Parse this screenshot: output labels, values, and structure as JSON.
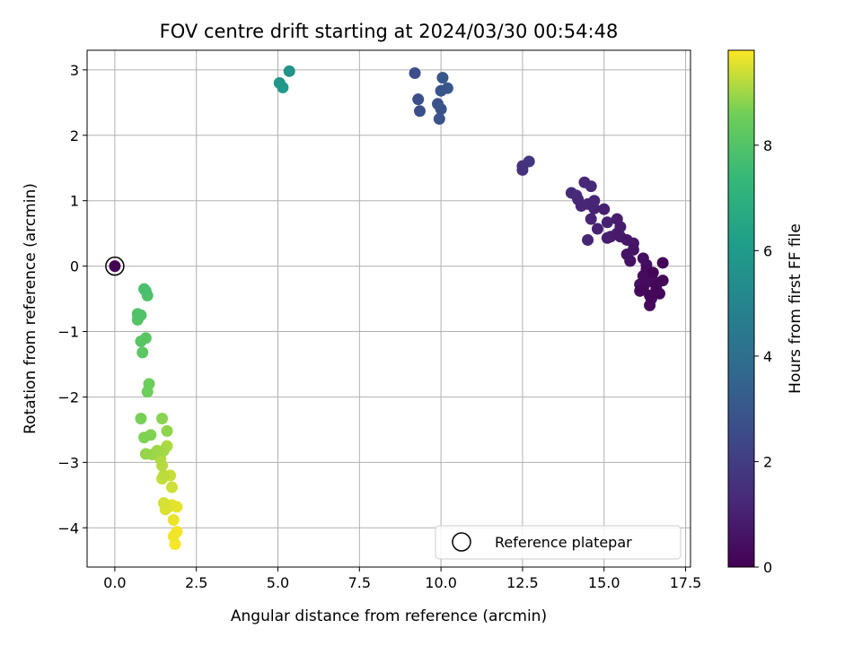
{
  "chart_data": {
    "type": "scatter",
    "title": "FOV centre drift starting at 2024/03/30 00:54:48",
    "xlabel": "Angular distance from reference (arcmin)",
    "ylabel": "Rotation from reference (arcmin)",
    "xlim": [
      -0.85,
      17.65
    ],
    "ylim": [
      -4.6,
      3.3
    ],
    "xticks": [
      0.0,
      2.5,
      5.0,
      7.5,
      10.0,
      12.5,
      15.0,
      17.5
    ],
    "xtick_labels": [
      "0.0",
      "2.5",
      "5.0",
      "7.5",
      "10.0",
      "12.5",
      "15.0",
      "17.5"
    ],
    "yticks": [
      -4,
      -3,
      -2,
      -1,
      0,
      1,
      2,
      3
    ],
    "ytick_labels": [
      "−4",
      "−3",
      "−2",
      "−1",
      "0",
      "1",
      "2",
      "3"
    ],
    "grid": true,
    "colormap": "viridis",
    "colorbar": {
      "label": "Hours from first FF file",
      "range": [
        0,
        9.8
      ],
      "ticks": [
        0,
        2,
        4,
        6,
        8
      ],
      "tick_labels": [
        "0",
        "2",
        "4",
        "6",
        "8"
      ]
    },
    "legend": {
      "position": "lower-right",
      "entries": [
        {
          "label": "Reference platepar",
          "marker": "open-circle"
        }
      ]
    },
    "reference_point": {
      "x": 0.0,
      "y": 0.0,
      "c": 0.0
    },
    "points": [
      {
        "x": 16.8,
        "y": 0.05,
        "c": 0.1
      },
      {
        "x": 16.5,
        "y": -0.1,
        "c": 0.1
      },
      {
        "x": 16.8,
        "y": -0.22,
        "c": 0.15
      },
      {
        "x": 16.6,
        "y": -0.3,
        "c": 0.15
      },
      {
        "x": 16.7,
        "y": -0.42,
        "c": 0.2
      },
      {
        "x": 16.4,
        "y": -0.45,
        "c": 0.2
      },
      {
        "x": 16.4,
        "y": -0.6,
        "c": 0.25
      },
      {
        "x": 16.2,
        "y": -0.35,
        "c": 0.25
      },
      {
        "x": 16.1,
        "y": -0.38,
        "c": 0.3
      },
      {
        "x": 16.3,
        "y": -0.25,
        "c": 0.3
      },
      {
        "x": 16.2,
        "y": -0.15,
        "c": 0.35
      },
      {
        "x": 16.3,
        "y": -0.05,
        "c": 0.35
      },
      {
        "x": 16.3,
        "y": 0.02,
        "c": 0.4
      },
      {
        "x": 16.2,
        "y": 0.12,
        "c": 0.4
      },
      {
        "x": 16.5,
        "y": -0.22,
        "c": 0.45
      },
      {
        "x": 16.6,
        "y": -0.35,
        "c": 0.45
      },
      {
        "x": 16.1,
        "y": -0.28,
        "c": 0.5
      },
      {
        "x": 16.45,
        "y": -0.5,
        "c": 0.5
      },
      {
        "x": 15.8,
        "y": 0.08,
        "c": 0.55
      },
      {
        "x": 15.7,
        "y": 0.18,
        "c": 0.6
      },
      {
        "x": 15.9,
        "y": 0.25,
        "c": 0.6
      },
      {
        "x": 15.9,
        "y": 0.35,
        "c": 0.65
      },
      {
        "x": 15.7,
        "y": 0.4,
        "c": 0.7
      },
      {
        "x": 15.8,
        "y": 0.08,
        "c": 0.7
      },
      {
        "x": 15.5,
        "y": 0.45,
        "c": 0.75
      },
      {
        "x": 15.4,
        "y": 0.5,
        "c": 0.8
      },
      {
        "x": 15.5,
        "y": 0.6,
        "c": 0.85
      },
      {
        "x": 15.4,
        "y": 0.72,
        "c": 0.9
      },
      {
        "x": 15.2,
        "y": 0.45,
        "c": 0.9
      },
      {
        "x": 15.1,
        "y": 0.43,
        "c": 0.95
      },
      {
        "x": 15.1,
        "y": 0.67,
        "c": 1.0
      },
      {
        "x": 15.0,
        "y": 0.87,
        "c": 1.0
      },
      {
        "x": 14.8,
        "y": 0.57,
        "c": 1.05
      },
      {
        "x": 14.6,
        "y": 0.72,
        "c": 1.1
      },
      {
        "x": 14.7,
        "y": 0.88,
        "c": 1.1
      },
      {
        "x": 14.7,
        "y": 1.0,
        "c": 1.15
      },
      {
        "x": 14.5,
        "y": 0.4,
        "c": 1.15
      },
      {
        "x": 14.5,
        "y": 0.95,
        "c": 1.2
      },
      {
        "x": 14.3,
        "y": 0.92,
        "c": 1.2
      },
      {
        "x": 14.2,
        "y": 1.02,
        "c": 1.25
      },
      {
        "x": 14.4,
        "y": 1.28,
        "c": 1.25
      },
      {
        "x": 14.6,
        "y": 1.22,
        "c": 1.3
      },
      {
        "x": 14.0,
        "y": 1.12,
        "c": 1.35
      },
      {
        "x": 14.15,
        "y": 1.08,
        "c": 1.4
      },
      {
        "x": 12.5,
        "y": 1.47,
        "c": 1.6
      },
      {
        "x": 12.5,
        "y": 1.53,
        "c": 1.65
      },
      {
        "x": 12.7,
        "y": 1.6,
        "c": 1.7
      },
      {
        "x": 9.2,
        "y": 2.95,
        "c": 2.6
      },
      {
        "x": 9.3,
        "y": 2.55,
        "c": 2.65
      },
      {
        "x": 9.35,
        "y": 2.37,
        "c": 2.7
      },
      {
        "x": 9.9,
        "y": 2.48,
        "c": 2.75
      },
      {
        "x": 10.0,
        "y": 2.4,
        "c": 2.8
      },
      {
        "x": 9.95,
        "y": 2.25,
        "c": 2.85
      },
      {
        "x": 10.0,
        "y": 2.68,
        "c": 2.9
      },
      {
        "x": 10.2,
        "y": 2.72,
        "c": 2.95
      },
      {
        "x": 10.05,
        "y": 2.88,
        "c": 3.0
      },
      {
        "x": 5.35,
        "y": 2.98,
        "c": 5.7
      },
      {
        "x": 5.05,
        "y": 2.8,
        "c": 5.8
      },
      {
        "x": 5.15,
        "y": 2.73,
        "c": 5.9
      },
      {
        "x": 0.9,
        "y": -0.35,
        "c": 7.8
      },
      {
        "x": 0.95,
        "y": -0.38,
        "c": 7.85
      },
      {
        "x": 1.0,
        "y": -0.45,
        "c": 7.9
      },
      {
        "x": 0.7,
        "y": -0.73,
        "c": 7.95
      },
      {
        "x": 0.8,
        "y": -0.75,
        "c": 8.0
      },
      {
        "x": 0.7,
        "y": -0.82,
        "c": 8.05
      },
      {
        "x": 0.8,
        "y": -1.15,
        "c": 8.1
      },
      {
        "x": 0.95,
        "y": -1.1,
        "c": 8.15
      },
      {
        "x": 0.85,
        "y": -1.32,
        "c": 8.2
      },
      {
        "x": 1.05,
        "y": -1.8,
        "c": 8.5
      },
      {
        "x": 1.0,
        "y": -1.92,
        "c": 8.55
      },
      {
        "x": 0.8,
        "y": -2.33,
        "c": 8.65
      },
      {
        "x": 0.9,
        "y": -2.62,
        "c": 8.7
      },
      {
        "x": 1.1,
        "y": -2.58,
        "c": 8.75
      },
      {
        "x": 1.45,
        "y": -2.33,
        "c": 8.8
      },
      {
        "x": 1.6,
        "y": -2.52,
        "c": 8.85
      },
      {
        "x": 0.95,
        "y": -2.87,
        "c": 8.9
      },
      {
        "x": 1.15,
        "y": -2.88,
        "c": 8.95
      },
      {
        "x": 1.3,
        "y": -2.82,
        "c": 9.0
      },
      {
        "x": 1.5,
        "y": -2.82,
        "c": 9.05
      },
      {
        "x": 1.6,
        "y": -2.75,
        "c": 9.1
      },
      {
        "x": 1.4,
        "y": -2.95,
        "c": 9.15
      },
      {
        "x": 1.45,
        "y": -3.05,
        "c": 9.2
      },
      {
        "x": 1.5,
        "y": -3.2,
        "c": 9.25
      },
      {
        "x": 1.45,
        "y": -3.25,
        "c": 9.3
      },
      {
        "x": 1.7,
        "y": -3.2,
        "c": 9.35
      },
      {
        "x": 1.75,
        "y": -3.38,
        "c": 9.4
      },
      {
        "x": 1.5,
        "y": -3.62,
        "c": 9.45
      },
      {
        "x": 1.55,
        "y": -3.72,
        "c": 9.5
      },
      {
        "x": 1.65,
        "y": -3.68,
        "c": 9.55
      },
      {
        "x": 1.75,
        "y": -3.65,
        "c": 9.58
      },
      {
        "x": 1.9,
        "y": -3.68,
        "c": 9.6
      },
      {
        "x": 1.8,
        "y": -3.88,
        "c": 9.65
      },
      {
        "x": 1.8,
        "y": -4.13,
        "c": 9.7
      },
      {
        "x": 1.9,
        "y": -4.06,
        "c": 9.72
      },
      {
        "x": 1.85,
        "y": -4.25,
        "c": 9.75
      }
    ]
  }
}
